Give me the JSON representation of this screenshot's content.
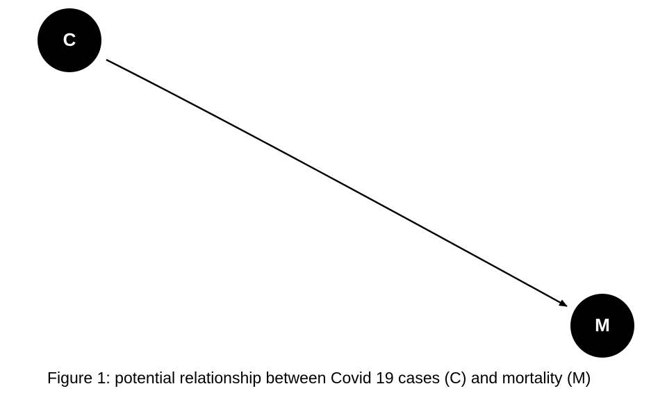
{
  "nodes": [
    {
      "id": "C",
      "label": "C"
    },
    {
      "id": "M",
      "label": "M"
    }
  ],
  "edges": [
    {
      "from": "C",
      "to": "M"
    }
  ],
  "caption": "Figure 1: potential relationship between Covid 19 cases (C) and mortality (M)",
  "colors": {
    "node_fill": "#000000",
    "node_text": "#ffffff",
    "edge": "#000000",
    "background": "#ffffff"
  }
}
